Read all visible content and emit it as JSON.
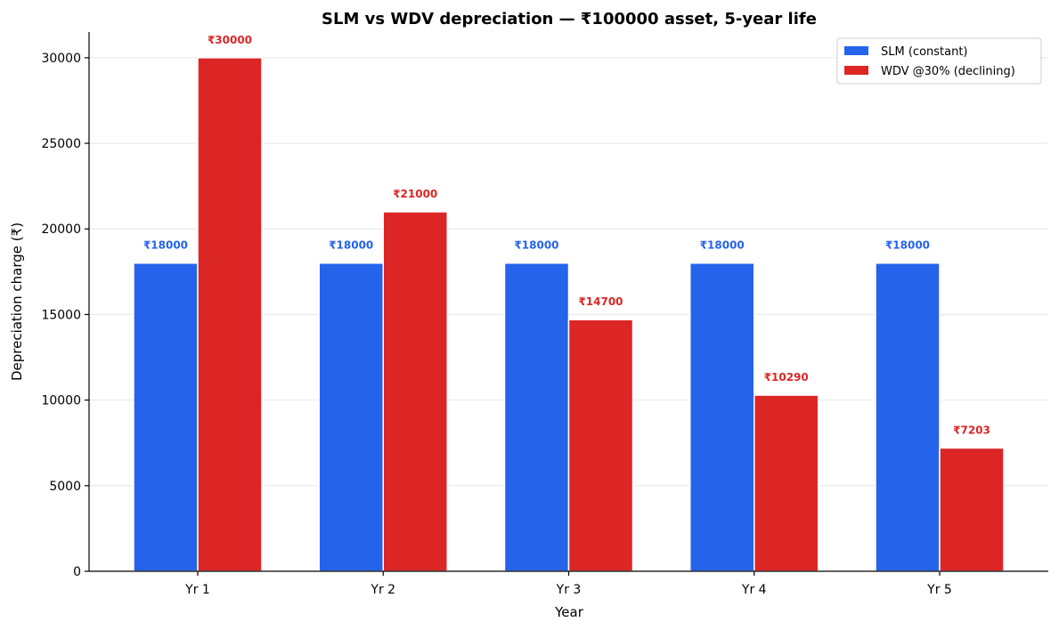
{
  "chart_data": {
    "type": "bar",
    "title": "SLM vs WDV depreciation — ₹100000 asset, 5-year life",
    "xlabel": "Year",
    "ylabel": "Depreciation charge (₹)",
    "categories": [
      "Yr 1",
      "Yr 2",
      "Yr 3",
      "Yr 4",
      "Yr 5"
    ],
    "ylim": [
      0,
      31500
    ],
    "yticks": [
      0,
      5000,
      10000,
      15000,
      20000,
      25000,
      30000
    ],
    "grid": true,
    "legend_position": "top-right",
    "series": [
      {
        "name": "SLM (constant)",
        "color": "#2563eb",
        "values": [
          18000,
          18000,
          18000,
          18000,
          18000
        ],
        "labels": [
          "₹18000",
          "₹18000",
          "₹18000",
          "₹18000",
          "₹18000"
        ]
      },
      {
        "name": "WDV @30% (declining)",
        "color": "#dc2626",
        "values": [
          30000,
          21000,
          14700,
          10290,
          7203
        ],
        "labels": [
          "₹30000",
          "₹21000",
          "₹14700",
          "₹10290",
          "₹7203"
        ]
      }
    ]
  }
}
